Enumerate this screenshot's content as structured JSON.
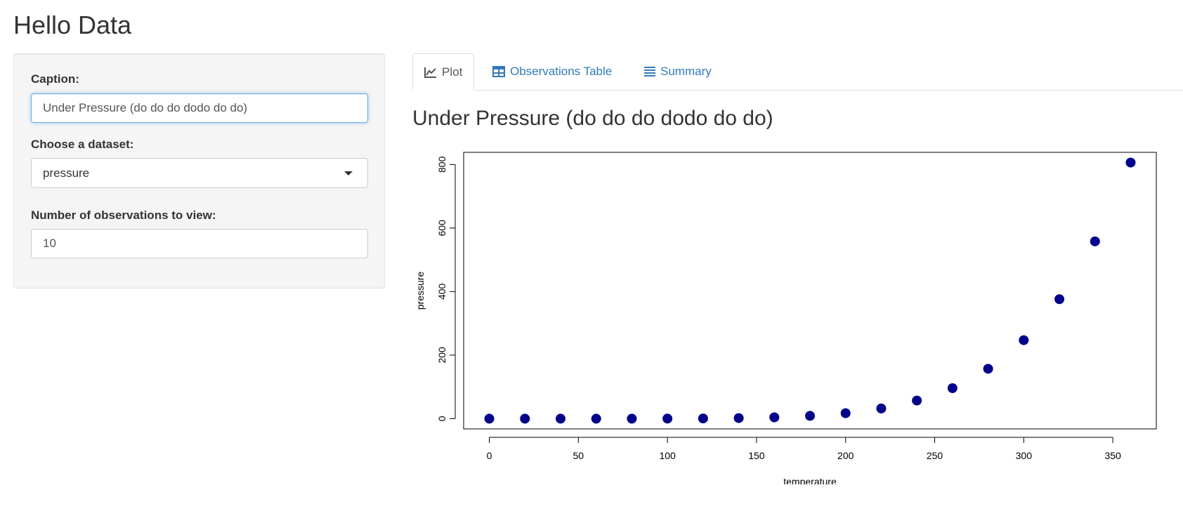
{
  "app": {
    "title": "Hello Data"
  },
  "sidebar": {
    "caption_label": "Caption:",
    "caption_value": "Under Pressure (do do do dodo do do)",
    "dataset_label": "Choose a dataset:",
    "dataset_value": "pressure",
    "obs_label": "Number of observations to view:",
    "obs_value": "10"
  },
  "tabs": [
    {
      "label": "Plot",
      "icon": "line-chart-icon",
      "active": true
    },
    {
      "label": "Observations Table",
      "icon": "table-icon",
      "active": false
    },
    {
      "label": "Summary",
      "icon": "list-icon",
      "active": false
    }
  ],
  "main": {
    "plot_title": "Under Pressure (do do do dodo do do)"
  },
  "colors": {
    "link": "#337ab7",
    "points": "#00008b",
    "focus_border": "#66afe9"
  },
  "chart_data": {
    "type": "scatter",
    "xlabel": "temperature",
    "ylabel": "pressure",
    "xlim": [
      0,
      360
    ],
    "ylim": [
      0,
      806
    ],
    "x_ticks": [
      0,
      50,
      100,
      150,
      200,
      250,
      300,
      350
    ],
    "y_ticks": [
      0,
      200,
      400,
      600,
      800
    ],
    "x": [
      0,
      20,
      40,
      60,
      80,
      100,
      120,
      140,
      160,
      180,
      200,
      220,
      240,
      260,
      280,
      300,
      320,
      340,
      360
    ],
    "y": [
      0.0002,
      0.0012,
      0.006,
      0.03,
      0.09,
      0.27,
      0.75,
      1.85,
      4.2,
      8.8,
      17.3,
      32.1,
      57,
      96,
      157,
      247,
      376,
      558,
      806
    ],
    "grid": false,
    "point_color": "#00008b"
  }
}
